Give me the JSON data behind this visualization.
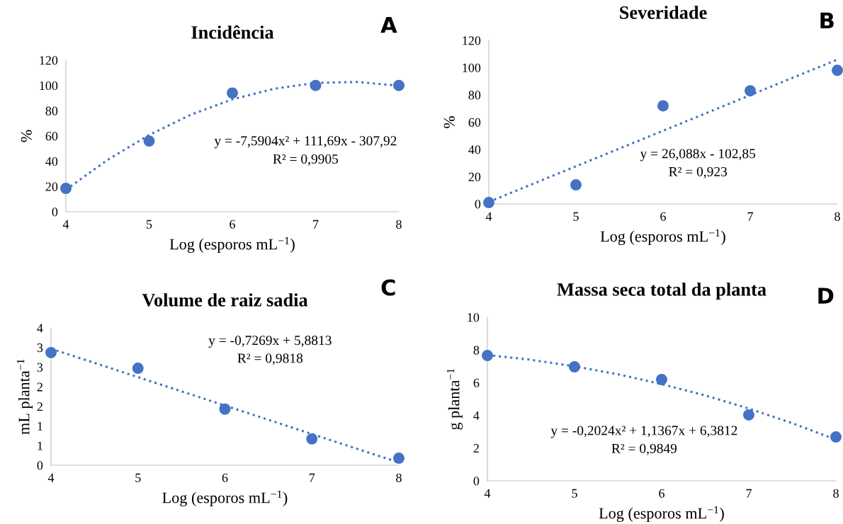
{
  "chart_data": [
    {
      "type": "scatter",
      "title": "Incidência",
      "xlabel": "Log (esporos mL$^{−1}$)",
      "ylabel": "%",
      "xlim": [
        4,
        8
      ],
      "xticks": [
        4,
        5,
        6,
        7,
        8
      ],
      "ylim": [
        0,
        120
      ],
      "yticks": [
        0,
        20,
        40,
        60,
        80,
        100,
        120
      ],
      "grid": false,
      "legend": false,
      "marker": "circle",
      "annotations": [
        "A",
        "y = -7,5904x² + 111,69x - 307,92",
        "R² = 0,9905"
      ],
      "series": [
        {
          "color": "#4472c4",
          "x": [
            4,
            5,
            6,
            7,
            8
          ],
          "values": [
            18.5,
            56,
            94,
            100,
            100
          ]
        },
        {
          "type": "line",
          "color": "#4472c4",
          "line_style": "dotted",
          "marker": "none",
          "x": [
            4,
            4.5,
            5,
            5.5,
            6,
            6.5,
            7,
            7.5,
            8
          ],
          "values": [
            17.4,
            41,
            60.8,
            76.8,
            89,
            97.4,
            102,
            102.8,
            99.8
          ]
        }
      ]
    },
    {
      "type": "scatter",
      "title": "Severidade",
      "xlabel": "Log (esporos mL$^{−1}$)",
      "ylabel": "%",
      "xlim": [
        4,
        8
      ],
      "xticks": [
        4,
        5,
        6,
        7,
        8
      ],
      "ylim": [
        0,
        120
      ],
      "yticks": [
        0,
        20,
        40,
        60,
        80,
        100,
        120
      ],
      "grid": false,
      "legend": false,
      "marker": "circle",
      "annotations": [
        "B",
        "y = 26,088x - 102,85",
        "R² = 0,923"
      ],
      "series": [
        {
          "color": "#4472c4",
          "x": [
            4,
            5,
            6,
            7,
            8
          ],
          "values": [
            1,
            14,
            72,
            83,
            98
          ]
        },
        {
          "type": "line",
          "color": "#4472c4",
          "line_style": "dotted",
          "marker": "none",
          "x": [
            4,
            8
          ],
          "values": [
            1.5,
            105.9
          ]
        }
      ]
    },
    {
      "type": "scatter",
      "title": "Volume de raiz sadia",
      "xlabel": "Log (esporos mL$^{−1}$)",
      "ylabel": "mL planta$^{−1}$",
      "xlim": [
        4,
        8
      ],
      "xticks": [
        4,
        5,
        6,
        7,
        8
      ],
      "ylim": [
        0,
        3.5
      ],
      "yticks": [
        0,
        {
          "value": 0.5,
          "label": "1"
        },
        1,
        {
          "value": 1.5,
          "label": "2"
        },
        2,
        {
          "value": 2.5,
          "label": "3"
        },
        3,
        {
          "value": 3.5,
          "label": "4"
        }
      ],
      "grid": false,
      "legend": false,
      "marker": "circle",
      "annotations": [
        "C",
        "y = -0,7269x + 5,8813",
        "R² = 0,9818"
      ],
      "series": [
        {
          "color": "#4472c4",
          "x": [
            4,
            5,
            6,
            7,
            8
          ],
          "values": [
            2.87,
            2.47,
            1.43,
            0.67,
            0.18
          ]
        },
        {
          "type": "line",
          "color": "#4472c4",
          "line_style": "dotted",
          "marker": "none",
          "x": [
            4,
            8
          ],
          "values": [
            2.97,
            0.07
          ]
        }
      ]
    },
    {
      "type": "scatter",
      "title": "Massa seca total da planta",
      "xlabel": "Log (esporos mL$^{−1}$)",
      "ylabel": "g planta$^{−1}$",
      "xlim": [
        4,
        8
      ],
      "xticks": [
        4,
        5,
        6,
        7,
        8
      ],
      "ylim": [
        0,
        10
      ],
      "yticks": [
        0,
        2,
        4,
        6,
        8,
        10
      ],
      "grid": false,
      "legend": false,
      "marker": "circle",
      "annotations": [
        "D",
        "y = -0,2024x² + 1,1367x + 6,3812",
        "R² = 0,9849"
      ],
      "series": [
        {
          "color": "#4472c4",
          "x": [
            4,
            5,
            6,
            7,
            8
          ],
          "values": [
            7.66,
            6.97,
            6.19,
            4.03,
            2.68
          ]
        },
        {
          "type": "line",
          "color": "#4472c4",
          "line_style": "dotted",
          "marker": "none",
          "x": [
            4,
            4.5,
            5,
            5.5,
            6,
            6.5,
            7,
            7.5,
            8
          ],
          "values": [
            7.69,
            7.4,
            7.0,
            6.51,
            5.91,
            5.22,
            4.42,
            3.52,
            2.52
          ]
        }
      ]
    }
  ]
}
